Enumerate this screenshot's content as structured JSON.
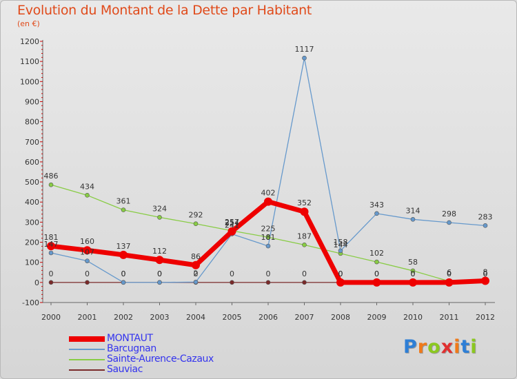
{
  "header": {
    "title": "Evolution du Montant de la Dette par Habitant",
    "subtitle": "(en €)"
  },
  "logo": {
    "text": "Proxiti",
    "colors": [
      "#2e7fd6",
      "#f07a1a",
      "#8bc820",
      "#e03030",
      "#f07a1a",
      "#2e7fd6",
      "#8bc820"
    ]
  },
  "chart_data": {
    "type": "line",
    "title": "Evolution du Montant de la Dette par Habitant",
    "subtitle": "(en €)",
    "x": [
      "2000",
      "2001",
      "2002",
      "2003",
      "2004",
      "2005",
      "2006",
      "2007",
      "2008",
      "2009",
      "2010",
      "2011",
      "2012"
    ],
    "ylim": [
      -100,
      1200
    ],
    "yticks": [
      "-100",
      "0",
      "100",
      "200",
      "300",
      "400",
      "500",
      "600",
      "700",
      "800",
      "900",
      "1000",
      "1100",
      "1200"
    ],
    "grid": false,
    "legend": "bottom-left",
    "series": [
      {
        "name": "MONTAUT",
        "color": "#ee0000",
        "values": [
          181,
          160,
          137,
          112,
          86,
          254,
          402,
          352,
          0,
          0,
          0,
          0,
          8
        ],
        "labels": [
          "181",
          "160",
          "137",
          "112",
          "86",
          "254",
          "402",
          "352",
          "0",
          "0",
          "0",
          "0",
          "8"
        ]
      },
      {
        "name": "Barcugnan",
        "color": "#6699cc",
        "values": [
          147,
          107,
          0,
          0,
          2,
          241,
          181,
          1117,
          158,
          343,
          314,
          298,
          283
        ],
        "labels": [
          "147",
          "107",
          "0",
          "0",
          "2",
          "241",
          "181",
          "1117",
          "158",
          "343",
          "314",
          "298",
          "283"
        ]
      },
      {
        "name": "Sainte-Aurence-Cazaux",
        "color": "#88cc44",
        "values": [
          486,
          434,
          361,
          324,
          292,
          257,
          225,
          187,
          144,
          102,
          58,
          6,
          0
        ],
        "labels": [
          "486",
          "434",
          "361",
          "324",
          "292",
          "257",
          "225",
          "187",
          "144",
          "102",
          "58",
          "6",
          "0"
        ]
      },
      {
        "name": "Sauviac",
        "color": "#7a2a2a",
        "values": [
          0,
          0,
          0,
          0,
          0,
          0,
          0,
          0,
          0,
          0,
          0,
          0,
          0
        ],
        "labels": [
          "0",
          "0",
          "0",
          "0",
          "0",
          "0",
          "0",
          "0",
          "0",
          "0",
          "0",
          "0",
          "0"
        ]
      }
    ]
  }
}
